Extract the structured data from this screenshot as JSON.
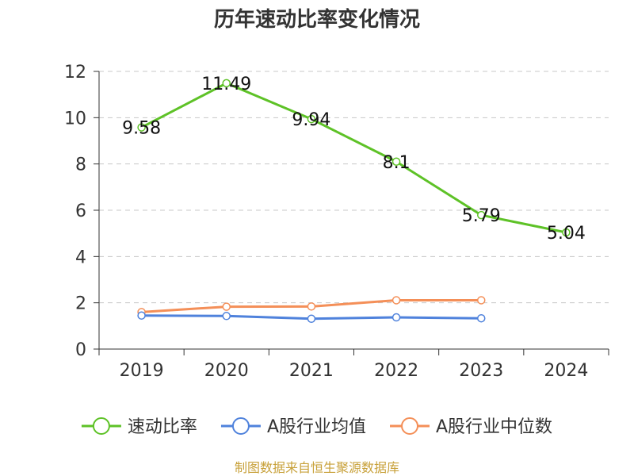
{
  "chart_data": {
    "type": "line",
    "title": "历年速动比率变化情况",
    "categories": [
      "2019",
      "2020",
      "2021",
      "2022",
      "2023",
      "2024"
    ],
    "ylim": [
      0,
      12
    ],
    "y_ticks": [
      0,
      2,
      4,
      6,
      8,
      10,
      12
    ],
    "grid": true,
    "legend_position": "bottom",
    "series": [
      {
        "name": "速动比率",
        "color": "#5ec227",
        "values": [
          9.58,
          11.49,
          9.94,
          8.1,
          5.79,
          5.04
        ],
        "labels": [
          "9.58",
          "11.49",
          "9.94",
          "8.1",
          "5.79",
          "5.04"
        ],
        "show_labels": true
      },
      {
        "name": "A股行业均值",
        "color": "#4f82dc",
        "values": [
          1.45,
          1.43,
          1.31,
          1.37,
          1.33,
          null
        ],
        "show_labels": false
      },
      {
        "name": "A股行业中位数",
        "color": "#f48f58",
        "values": [
          1.6,
          1.83,
          1.84,
          2.11,
          2.11,
          null
        ],
        "show_labels": false
      }
    ]
  },
  "source_note": "制图数据来自恒生聚源数据库",
  "source_note_color": "#c8a13a"
}
